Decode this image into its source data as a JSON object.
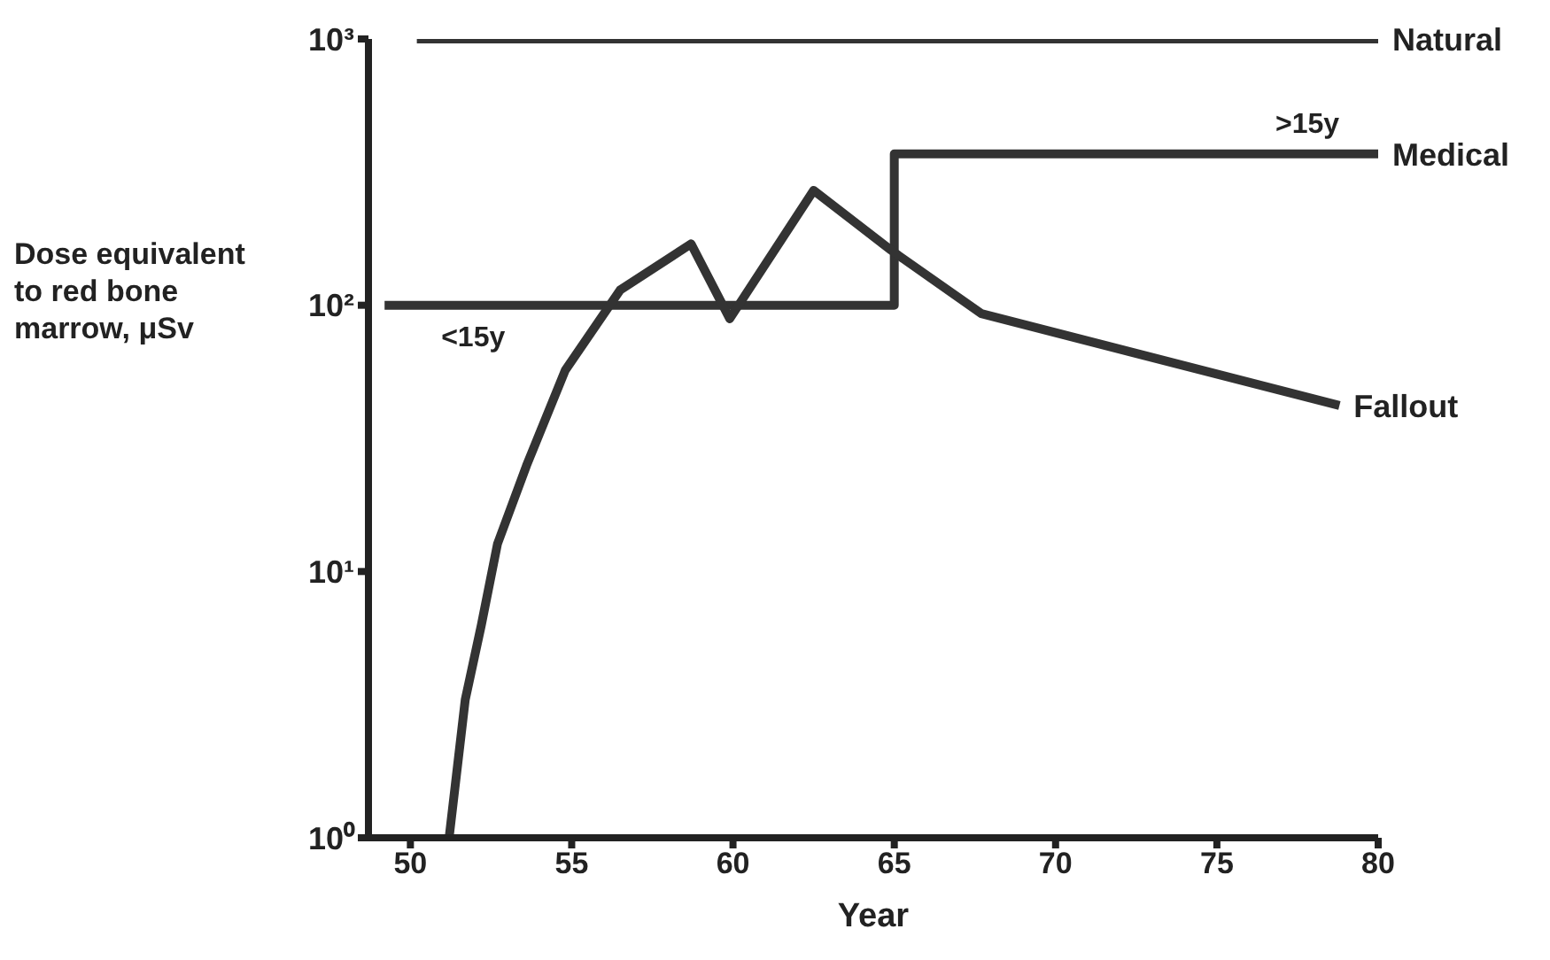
{
  "chart_data": {
    "type": "line",
    "xlabel": "Year",
    "ylabel": "Dose equivalent to red bone marrow, μSv",
    "log": "y",
    "xlim": [
      48.7,
      80
    ],
    "xticks": [
      50,
      55,
      60,
      65,
      70,
      75,
      80
    ],
    "ylim": [
      1,
      1000
    ],
    "yticks": [
      {
        "value": 1,
        "label": "10⁰"
      },
      {
        "value": 10,
        "label": "10¹"
      },
      {
        "value": 100,
        "label": "10²"
      },
      {
        "value": 1000,
        "label": "10³"
      }
    ],
    "marker": "none",
    "line_style": "solid",
    "series": [
      {
        "name": "Natural",
        "color": "#333333",
        "x": [
          50.2,
          80
        ],
        "values": [
          1000,
          1000
        ]
      },
      {
        "name": "Medical",
        "type": "step",
        "color": "#333333",
        "x": [
          49.2,
          65,
          80
        ],
        "values": [
          100,
          370,
          370
        ]
      },
      {
        "name": "Fallout",
        "color": "#333333",
        "x": [
          51.2,
          51.7,
          52.2,
          52.7,
          53.6,
          54.8,
          56.5,
          58.7,
          59.9,
          62.5,
          64.9,
          67.7,
          78.8
        ],
        "values": [
          1,
          3.3,
          6.3,
          12.7,
          25,
          57,
          114,
          170,
          89,
          270,
          161,
          93,
          42
        ]
      }
    ],
    "annotations": [
      ">15y",
      "<15y"
    ]
  }
}
